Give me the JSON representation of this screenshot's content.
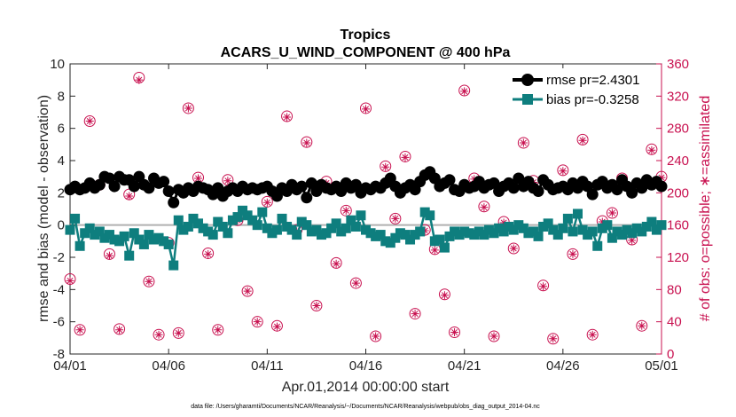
{
  "chart_data": {
    "type": "line",
    "title": "Tropics",
    "subtitle": "ACARS_U_WIND_COMPONENT @ 400 hPa",
    "xlabel": "Apr.01,2014 00:00:00 start",
    "ylabel": "rmse and bias (model - observation)",
    "y2label": "# of obs: o=possible; ∗=assimilated",
    "footnote": "data file: /Users/gharamti/Documents/NCAR/Reanalysis/~/Documents/NCAR/Reanalysis/webpub/obs_diag_output_2014-04.nc",
    "xlim": [
      0,
      30
    ],
    "ylim": [
      -8,
      10
    ],
    "y2lim": [
      0,
      360
    ],
    "x_ticks": [
      0,
      5,
      10,
      15,
      20,
      25,
      30
    ],
    "x_tick_labels": [
      "04/01",
      "04/06",
      "04/11",
      "04/16",
      "04/21",
      "04/26",
      "05/01"
    ],
    "y_ticks": [
      -8,
      -6,
      -4,
      -2,
      0,
      2,
      4,
      6,
      8,
      10
    ],
    "y_tick_labels": [
      "-8",
      "-6",
      "-4",
      "-2",
      "0",
      "2",
      "4",
      "6",
      "8",
      "10"
    ],
    "y2_ticks": [
      0,
      40,
      80,
      120,
      160,
      200,
      240,
      280,
      320,
      360
    ],
    "y2_tick_labels": [
      "0",
      "40",
      "80",
      "120",
      "160",
      "200",
      "240",
      "280",
      "320",
      "360"
    ],
    "legend_position": "top-right",
    "zero_line": 0,
    "colors": {
      "rmse": "#000000",
      "bias": "#0e7e7e",
      "obs": "#c8104f",
      "zero_line": "#b0b0b0",
      "axis": "#262626"
    },
    "series": [
      {
        "name": "rmse",
        "legend": "rmse pr=2.4301",
        "marker": "circle",
        "x": [
          0.0,
          0.25,
          0.5,
          0.75,
          1.0,
          1.25,
          1.5,
          1.75,
          2.0,
          2.25,
          2.5,
          2.75,
          3.0,
          3.25,
          3.5,
          3.75,
          4.0,
          4.25,
          4.5,
          4.75,
          5.0,
          5.25,
          5.5,
          5.75,
          6.0,
          6.25,
          6.5,
          6.75,
          7.0,
          7.25,
          7.5,
          7.75,
          8.0,
          8.25,
          8.5,
          8.75,
          9.0,
          9.25,
          9.5,
          9.75,
          10.0,
          10.25,
          10.5,
          10.75,
          11.0,
          11.25,
          11.5,
          11.75,
          12.0,
          12.25,
          12.5,
          12.75,
          13.0,
          13.25,
          13.5,
          13.75,
          14.0,
          14.25,
          14.5,
          14.75,
          15.0,
          15.25,
          15.5,
          15.75,
          16.0,
          16.25,
          16.5,
          16.75,
          17.0,
          17.25,
          17.5,
          17.75,
          18.0,
          18.25,
          18.5,
          18.75,
          19.0,
          19.25,
          19.5,
          19.75,
          20.0,
          20.25,
          20.5,
          20.75,
          21.0,
          21.25,
          21.5,
          21.75,
          22.0,
          22.25,
          22.5,
          22.75,
          23.0,
          23.25,
          23.5,
          23.75,
          24.0,
          24.25,
          24.5,
          24.75,
          25.0,
          25.25,
          25.5,
          25.75,
          26.0,
          26.25,
          26.5,
          26.75,
          27.0,
          27.25,
          27.5,
          27.75,
          28.0,
          28.25,
          28.5,
          28.75,
          29.0,
          29.25,
          29.5,
          29.75,
          30.0
        ],
        "values": [
          2.2,
          2.4,
          2.2,
          2.3,
          2.6,
          2.3,
          2.5,
          3.0,
          2.9,
          2.4,
          3.0,
          2.8,
          2.8,
          2.4,
          3.0,
          2.5,
          2.3,
          2.9,
          2.6,
          2.7,
          2.1,
          1.4,
          2.2,
          2.0,
          2.3,
          2.1,
          2.4,
          2.3,
          2.2,
          1.9,
          2.3,
          1.8,
          2.1,
          2.3,
          2.1,
          2.4,
          2.2,
          2.3,
          2.2,
          2.3,
          2.4,
          2.1,
          1.8,
          2.3,
          2.1,
          2.5,
          2.2,
          2.4,
          1.7,
          2.6,
          2.1,
          2.5,
          2.3,
          2.2,
          2.4,
          2.1,
          2.6,
          2.3,
          2.5,
          2.0,
          2.3,
          2.2,
          2.4,
          2.3,
          2.6,
          2.9,
          2.4,
          2.0,
          2.3,
          2.5,
          2.2,
          2.7,
          3.1,
          3.3,
          2.9,
          2.4,
          2.6,
          2.8,
          2.2,
          2.1,
          2.5,
          2.3,
          2.4,
          2.7,
          2.3,
          2.5,
          2.6,
          2.1,
          2.4,
          2.6,
          2.3,
          2.9,
          2.4,
          2.7,
          2.3,
          2.1,
          2.8,
          2.5,
          2.2,
          2.3,
          2.4,
          2.2,
          2.6,
          2.3,
          2.7,
          2.4,
          1.9,
          2.5,
          2.7,
          2.3,
          2.5,
          2.2,
          2.8,
          2.4,
          2.0,
          2.6,
          2.3,
          2.8,
          2.5,
          2.7,
          2.4
        ],
        "axis": "left"
      },
      {
        "name": "bias",
        "legend": "bias pr=-0.3258",
        "marker": "square",
        "x": [
          0.0,
          0.25,
          0.5,
          0.75,
          1.0,
          1.25,
          1.5,
          1.75,
          2.0,
          2.25,
          2.5,
          2.75,
          3.0,
          3.25,
          3.5,
          3.75,
          4.0,
          4.25,
          4.5,
          4.75,
          5.0,
          5.25,
          5.5,
          5.75,
          6.0,
          6.25,
          6.5,
          6.75,
          7.0,
          7.25,
          7.5,
          7.75,
          8.0,
          8.25,
          8.5,
          8.75,
          9.0,
          9.25,
          9.5,
          9.75,
          10.0,
          10.25,
          10.5,
          10.75,
          11.0,
          11.25,
          11.5,
          11.75,
          12.0,
          12.25,
          12.5,
          12.75,
          13.0,
          13.25,
          13.5,
          13.75,
          14.0,
          14.25,
          14.5,
          14.75,
          15.0,
          15.25,
          15.5,
          15.75,
          16.0,
          16.25,
          16.5,
          16.75,
          17.0,
          17.25,
          17.5,
          17.75,
          18.0,
          18.25,
          18.5,
          18.75,
          19.0,
          19.25,
          19.5,
          19.75,
          20.0,
          20.25,
          20.5,
          20.75,
          21.0,
          21.25,
          21.5,
          21.75,
          22.0,
          22.25,
          22.5,
          22.75,
          23.0,
          23.25,
          23.5,
          23.75,
          24.0,
          24.25,
          24.5,
          24.75,
          25.0,
          25.25,
          25.5,
          25.75,
          26.0,
          26.25,
          26.5,
          26.75,
          27.0,
          27.25,
          27.5,
          27.75,
          28.0,
          28.25,
          28.5,
          28.75,
          29.0,
          29.25,
          29.5,
          29.75,
          30.0
        ],
        "values": [
          -0.3,
          0.4,
          -1.3,
          -0.5,
          -0.2,
          -0.6,
          -0.4,
          -0.8,
          -0.6,
          -0.9,
          -1.0,
          -0.7,
          -1.9,
          -0.5,
          -0.9,
          -1.2,
          -0.6,
          -0.9,
          -0.8,
          -1.0,
          -1.2,
          -2.5,
          0.3,
          -0.3,
          -0.1,
          0.4,
          0.1,
          -0.2,
          -0.4,
          -0.6,
          0.2,
          -0.1,
          -0.5,
          0.3,
          0.5,
          0.9,
          0.6,
          0.3,
          0.0,
          0.8,
          -0.2,
          -0.5,
          -0.3,
          0.4,
          -0.1,
          -0.3,
          -0.6,
          0.2,
          0.0,
          -0.4,
          -0.3,
          -0.6,
          -0.5,
          -0.2,
          0.1,
          -0.4,
          -0.2,
          0.3,
          -0.1,
          0.6,
          -0.3,
          -0.5,
          -0.7,
          -0.6,
          -1.0,
          -1.1,
          -0.8,
          -0.5,
          -0.6,
          -0.9,
          -0.6,
          -0.4,
          0.8,
          0.6,
          -1.0,
          -0.9,
          -1.4,
          -0.7,
          -0.4,
          -0.6,
          -0.4,
          -0.5,
          -0.6,
          -0.4,
          -0.6,
          -0.3,
          -0.5,
          -0.2,
          -0.4,
          -0.1,
          -0.3,
          0.0,
          -0.2,
          -0.5,
          -0.4,
          -0.7,
          -0.1,
          0.1,
          -0.3,
          -0.6,
          -0.2,
          0.4,
          -0.4,
          0.7,
          -0.3,
          -0.6,
          -0.4,
          -1.3,
          -0.2,
          0.0,
          -0.8,
          -0.4,
          -0.6,
          -0.3,
          -0.5,
          -0.2,
          -0.4,
          -0.1,
          0.2,
          -0.3,
          0.0
        ],
        "axis": "left"
      },
      {
        "name": "obs_possible",
        "marker": "circle-open",
        "axis": "right",
        "x": [
          0.0,
          0.5,
          1.0,
          1.5,
          2.0,
          2.5,
          3.0,
          3.5,
          4.0,
          4.5,
          5.0,
          5.5,
          6.0,
          6.5,
          7.0,
          7.5,
          8.0,
          8.5,
          9.0,
          9.5,
          10.0,
          10.5,
          11.0,
          11.5,
          12.0,
          12.5,
          13.0,
          13.5,
          14.0,
          14.5,
          15.0,
          15.5,
          16.0,
          16.5,
          17.0,
          17.5,
          18.0,
          18.5,
          19.0,
          19.5,
          20.0,
          20.5,
          21.0,
          21.5,
          22.0,
          22.5,
          23.0,
          23.5,
          24.0,
          24.5,
          25.0,
          25.5,
          26.0,
          26.5,
          27.0,
          27.5,
          28.0,
          28.5,
          29.0,
          29.5,
          30.0
        ],
        "values": [
          93,
          30,
          289,
          210,
          124,
          31,
          198,
          343,
          90,
          24,
          138,
          26,
          305,
          219,
          125,
          30,
          216,
          166,
          78,
          40,
          189,
          35,
          295,
          154,
          263,
          60,
          214,
          113,
          178,
          88,
          305,
          22,
          233,
          168,
          245,
          50,
          154,
          130,
          74,
          27,
          327,
          218,
          183,
          22,
          164,
          131,
          262,
          215,
          85,
          19,
          228,
          124,
          266,
          24,
          165,
          175,
          218,
          142,
          35,
          254,
          220
        ]
      },
      {
        "name": "obs_assimilated",
        "marker": "asterisk",
        "axis": "right",
        "x": [
          0.0,
          0.5,
          1.0,
          1.5,
          2.0,
          2.5,
          3.0,
          3.5,
          4.0,
          4.5,
          5.0,
          5.5,
          6.0,
          6.5,
          7.0,
          7.5,
          8.0,
          8.5,
          9.0,
          9.5,
          10.0,
          10.5,
          11.0,
          11.5,
          12.0,
          12.5,
          13.0,
          13.5,
          14.0,
          14.5,
          15.0,
          15.5,
          16.0,
          16.5,
          17.0,
          17.5,
          18.0,
          18.5,
          19.0,
          19.5,
          20.0,
          20.5,
          21.0,
          21.5,
          22.0,
          22.5,
          23.0,
          23.5,
          24.0,
          24.5,
          25.0,
          25.5,
          26.0,
          26.5,
          27.0,
          27.5,
          28.0,
          28.5,
          29.0,
          29.5,
          30.0
        ],
        "values": [
          91,
          30,
          289,
          208,
          122,
          30,
          196,
          340,
          90,
          24,
          137,
          26,
          305,
          218,
          124,
          30,
          215,
          166,
          78,
          40,
          188,
          34,
          294,
          152,
          262,
          60,
          212,
          112,
          178,
          88,
          304,
          22,
          232,
          168,
          244,
          50,
          153,
          129,
          73,
          27,
          326,
          217,
          182,
          22,
          163,
          131,
          262,
          213,
          84,
          19,
          227,
          124,
          265,
          24,
          164,
          175,
          218,
          141,
          35,
          253,
          219
        ]
      }
    ]
  }
}
